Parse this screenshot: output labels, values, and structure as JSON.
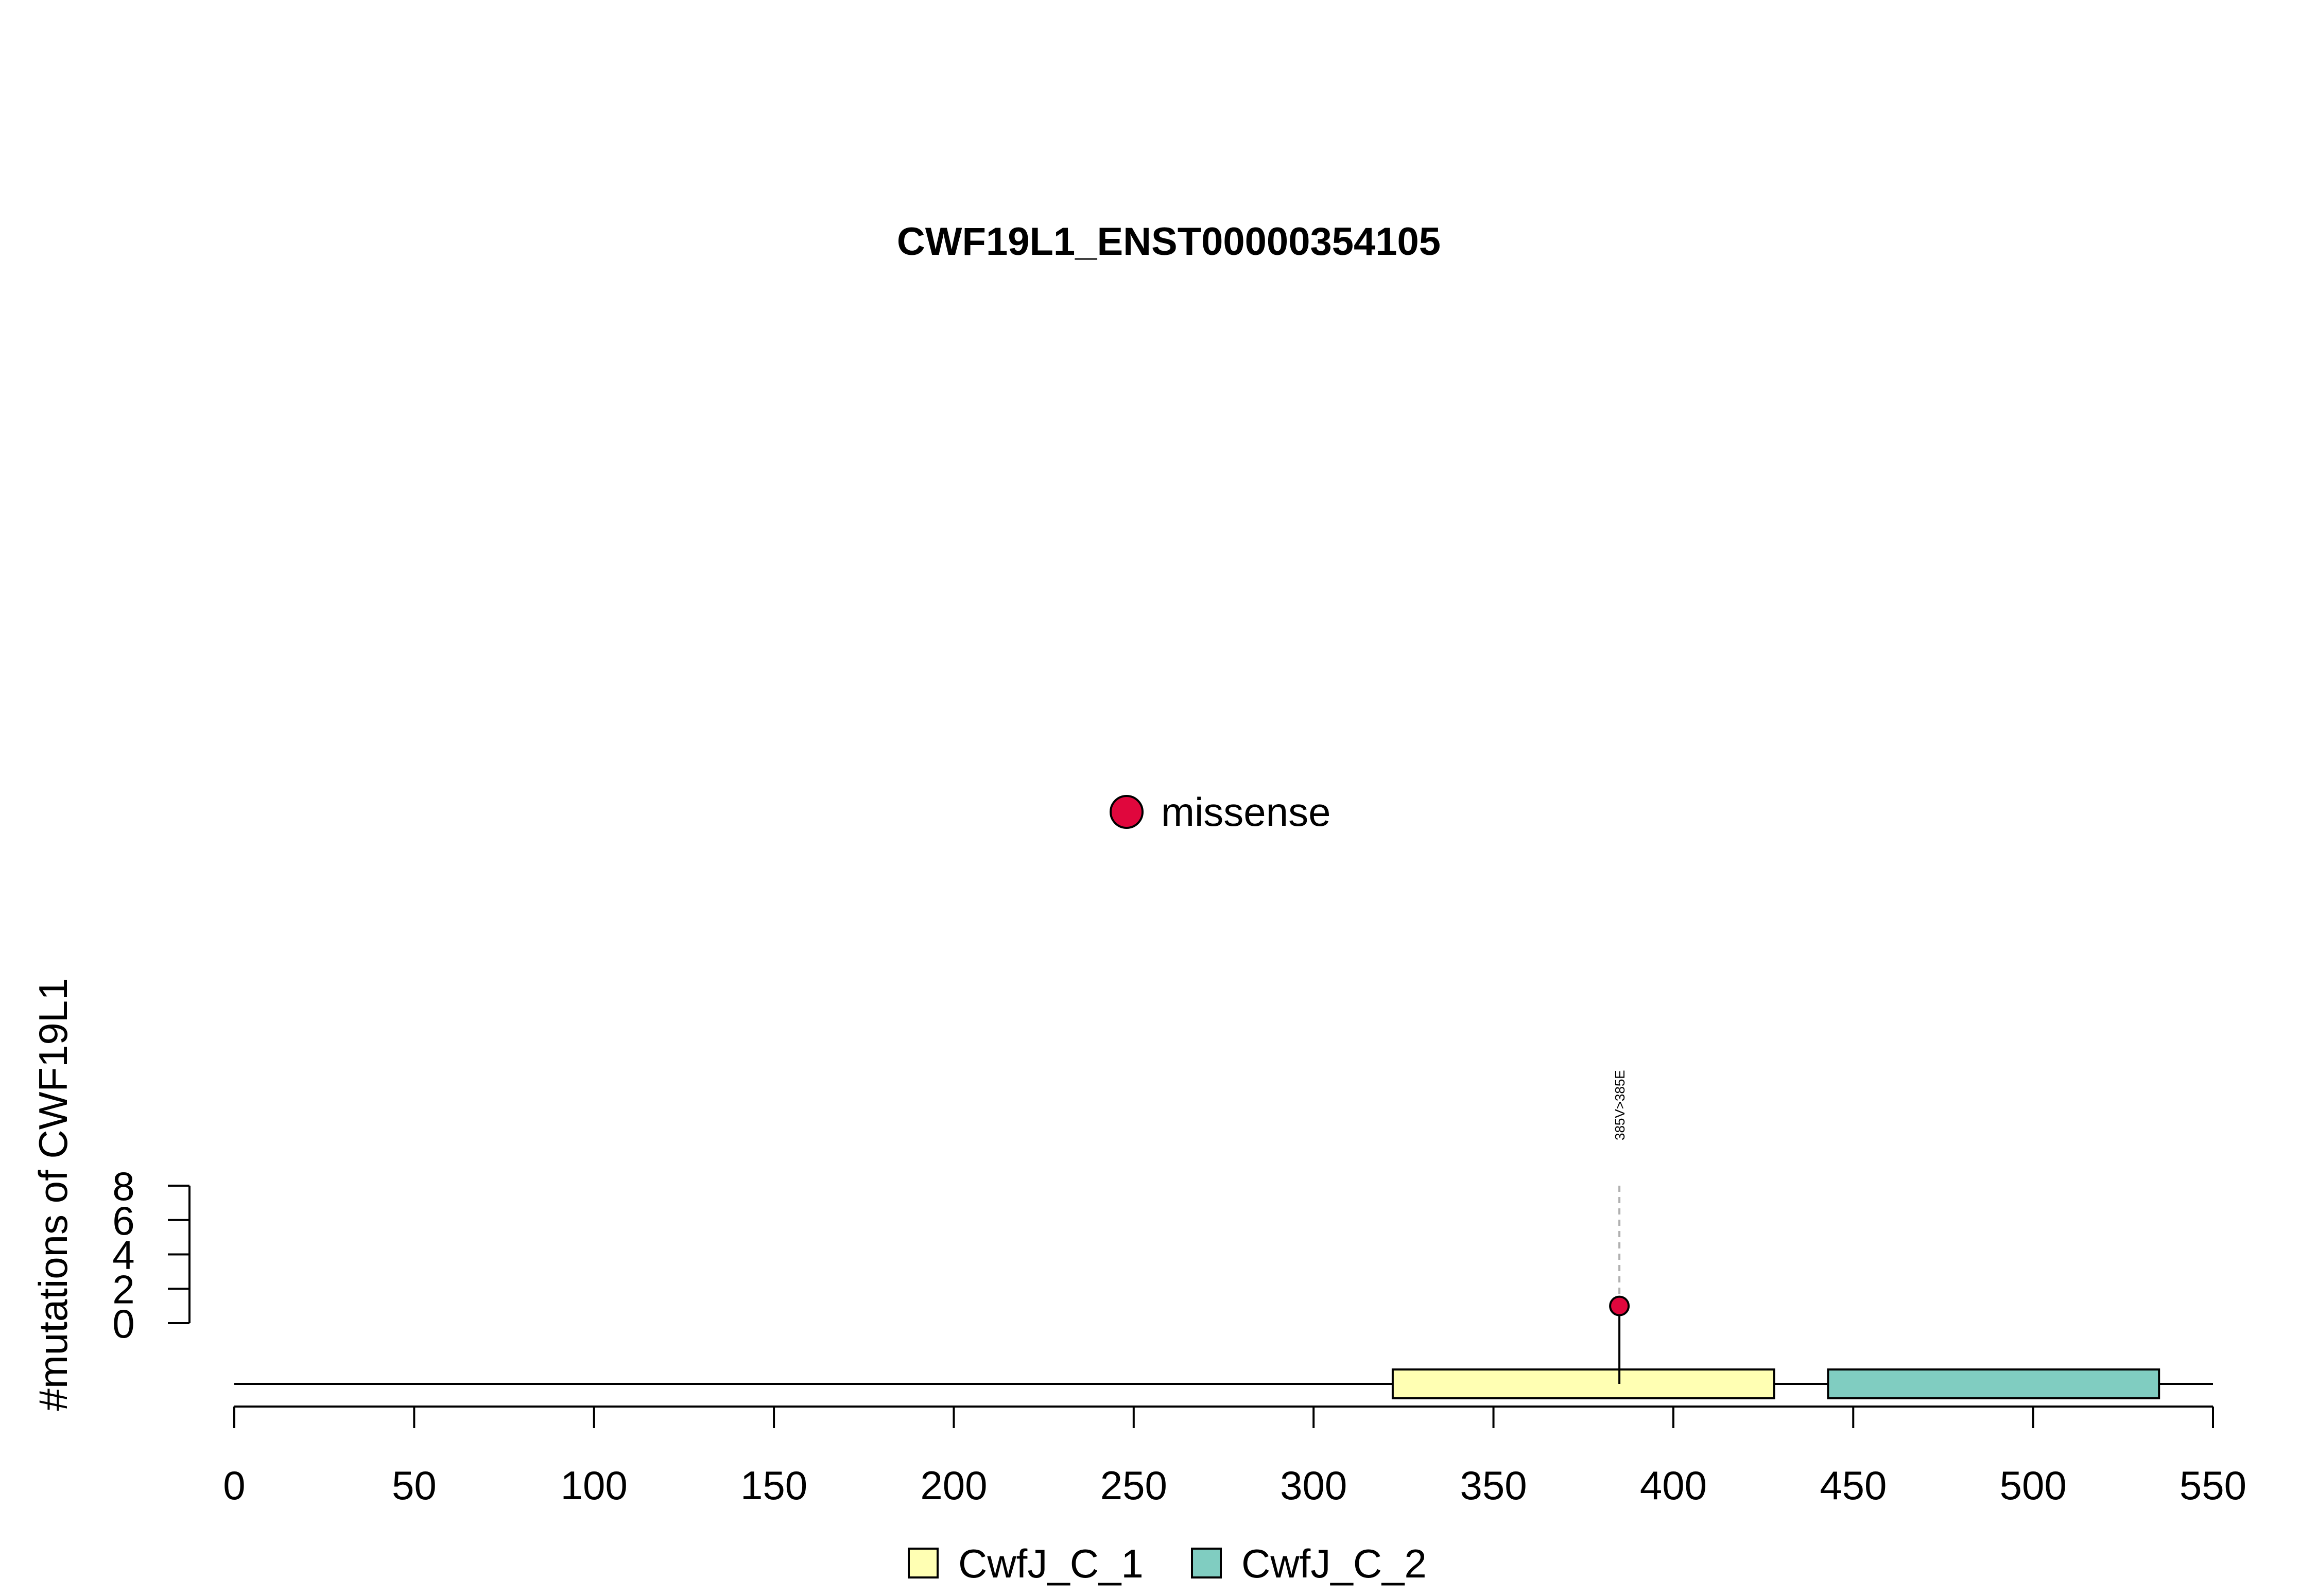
{
  "chart_data": {
    "type": "lollipop",
    "title": "CWF19L1_ENST00000354105",
    "xlabel": "",
    "ylabel": "#mutations of CWF19L1",
    "xlim": [
      0,
      550
    ],
    "x_ticks": [
      "0",
      "50",
      "100",
      "150",
      "200",
      "250",
      "300",
      "350",
      "400",
      "450",
      "500",
      "550"
    ],
    "y_ticks": [
      "0",
      "2",
      "4",
      "6",
      "8"
    ],
    "ylim": [
      0,
      8
    ],
    "protein_length": 550,
    "domains": [
      {
        "name": "CwfJ_C_1",
        "start": 322,
        "end": 428,
        "color": "#FFFFB3"
      },
      {
        "name": "CwfJ_C_2",
        "start": 443,
        "end": 535,
        "color": "#80CDC1"
      }
    ],
    "mutations": [
      {
        "position": 385,
        "count": 1,
        "label": "385V>385E",
        "type": "missense",
        "color": "#E0073D"
      }
    ],
    "mutation_legend": [
      {
        "label": "missense",
        "color": "#E0073D"
      }
    ],
    "domain_legend": [
      {
        "label": "CwfJ_C_1",
        "color": "#FFFFB3"
      },
      {
        "label": "CwfJ_C_2",
        "color": "#80CDC1"
      }
    ],
    "grid": false
  }
}
